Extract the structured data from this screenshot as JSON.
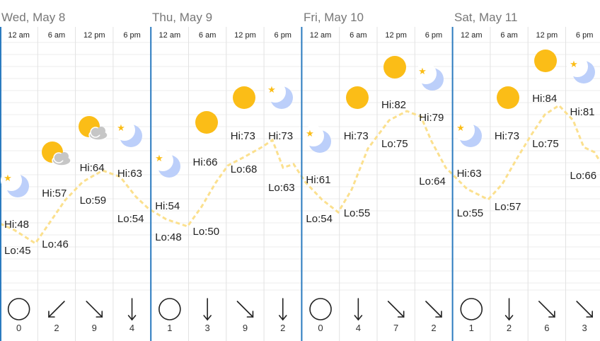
{
  "days": [
    {
      "label": "Wed, May 8"
    },
    {
      "label": "Thu, May 9"
    },
    {
      "label": "Fri, May 10"
    },
    {
      "label": "Sat, May 11"
    }
  ],
  "times": [
    "12 am",
    "6 am",
    "12 pm",
    "6 pm"
  ],
  "periods": [
    {
      "icon": "moon-icon",
      "hi": "Hi:48",
      "lo": "Lo:45",
      "wind_speed": "0",
      "wind_dir": "calm-circle-icon"
    },
    {
      "icon": "partly-cloudy-icon",
      "hi": "Hi:57",
      "lo": "Lo:46",
      "wind_speed": "2",
      "wind_dir": "arrow-southwest-icon"
    },
    {
      "icon": "partly-cloudy-icon",
      "hi": "Hi:64",
      "lo": "Lo:59",
      "wind_speed": "9",
      "wind_dir": "arrow-southeast-icon"
    },
    {
      "icon": "moon-icon",
      "hi": "Hi:63",
      "lo": "Lo:54",
      "wind_speed": "4",
      "wind_dir": "arrow-south-icon"
    },
    {
      "icon": "moon-icon",
      "hi": "Hi:54",
      "lo": "Lo:48",
      "wind_speed": "1",
      "wind_dir": "calm-circle-icon"
    },
    {
      "icon": "sun-icon",
      "hi": "Hi:66",
      "lo": "Lo:50",
      "wind_speed": "3",
      "wind_dir": "arrow-south-icon"
    },
    {
      "icon": "sun-icon",
      "hi": "Hi:73",
      "lo": "Lo:68",
      "wind_speed": "9",
      "wind_dir": "arrow-southeast-icon"
    },
    {
      "icon": "moon-icon",
      "hi": "Hi:73",
      "lo": "Lo:63",
      "wind_speed": "2",
      "wind_dir": "arrow-south-icon"
    },
    {
      "icon": "moon-icon",
      "hi": "Hi:61",
      "lo": "Lo:54",
      "wind_speed": "0",
      "wind_dir": "calm-circle-icon"
    },
    {
      "icon": "sun-icon",
      "hi": "Hi:73",
      "lo": "Lo:55",
      "wind_speed": "4",
      "wind_dir": "arrow-south-icon"
    },
    {
      "icon": "sun-icon",
      "hi": "Hi:82",
      "lo": "Lo:75",
      "wind_speed": "7",
      "wind_dir": "arrow-southeast-icon"
    },
    {
      "icon": "moon-icon",
      "hi": "Hi:79",
      "lo": "Lo:64",
      "wind_speed": "2",
      "wind_dir": "arrow-southeast-icon"
    },
    {
      "icon": "moon-icon",
      "hi": "Hi:63",
      "lo": "Lo:55",
      "wind_speed": "1",
      "wind_dir": "calm-circle-icon"
    },
    {
      "icon": "sun-icon",
      "hi": "Hi:73",
      "lo": "Lo:57",
      "wind_speed": "2",
      "wind_dir": "arrow-south-icon"
    },
    {
      "icon": "sun-icon",
      "hi": "Hi:84",
      "lo": "Lo:75",
      "wind_speed": "6",
      "wind_dir": "arrow-southeast-icon"
    },
    {
      "icon": "moon-icon",
      "hi": "Hi:81",
      "lo": "Lo:66",
      "wind_speed": "3",
      "wind_dir": "arrow-southeast-icon"
    }
  ],
  "colors": {
    "temp_line": "#fbe08e",
    "sun": "#fbbd17",
    "moon": "#bccffa",
    "star": "#fbbd17",
    "cloud": "#c6c6c6",
    "day_divider": "#2b7bbf"
  }
}
